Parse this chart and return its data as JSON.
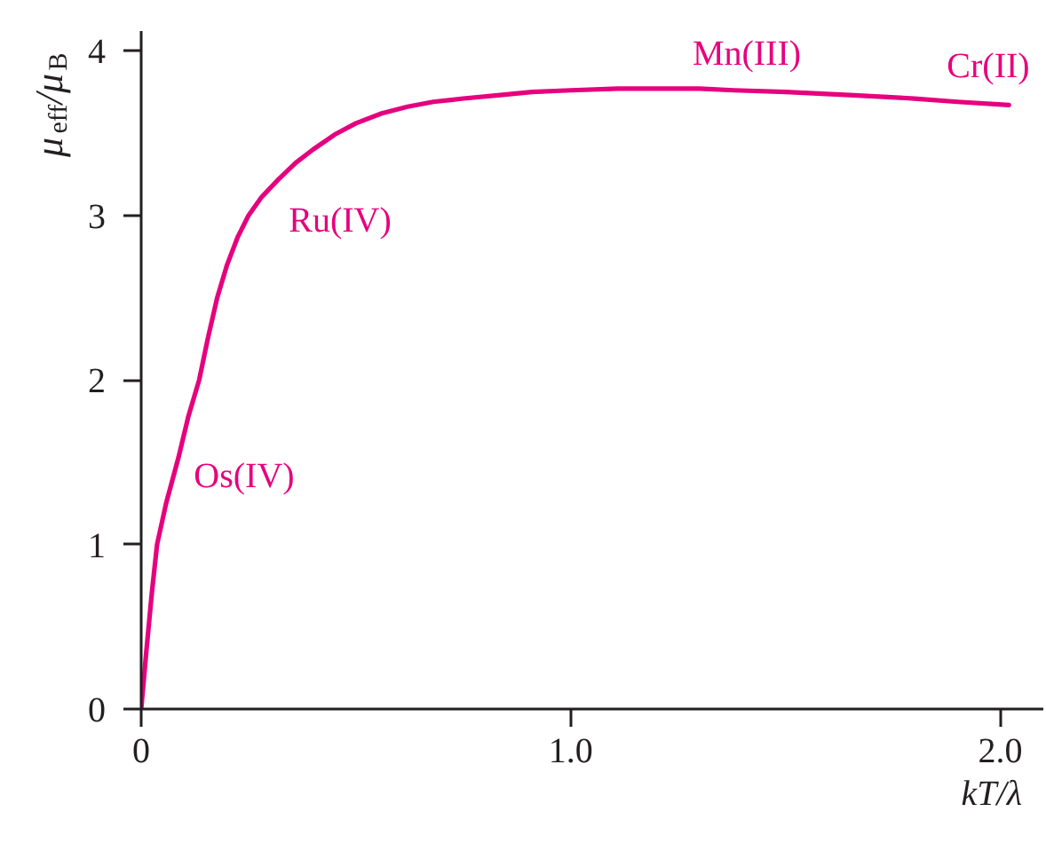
{
  "chart_data": {
    "type": "line",
    "xlabel": "kT/λ",
    "ylabel": "μ$_{eff}$/μ$_{B}$",
    "x": [
      0,
      0.012,
      0.025,
      0.037,
      0.058,
      0.087,
      0.11,
      0.135,
      0.155,
      0.177,
      0.2,
      0.225,
      0.25,
      0.28,
      0.32,
      0.36,
      0.4,
      0.45,
      0.5,
      0.56,
      0.62,
      0.68,
      0.75,
      0.83,
      0.91,
      1.0,
      1.11,
      1.2,
      1.3,
      1.38,
      1.5,
      1.66,
      1.8,
      1.9,
      2.02
    ],
    "series": [
      {
        "color": "#e6007e",
        "values": [
          0,
          0.35,
          0.71,
          1.0,
          1.25,
          1.53,
          1.78,
          2.0,
          2.25,
          2.5,
          2.7,
          2.87,
          3.0,
          3.11,
          3.22,
          3.32,
          3.4,
          3.49,
          3.56,
          3.62,
          3.66,
          3.69,
          3.71,
          3.73,
          3.75,
          3.76,
          3.77,
          3.77,
          3.77,
          3.76,
          3.75,
          3.73,
          3.71,
          3.69,
          3.67
        ]
      }
    ],
    "xlim": [
      0,
      2.1
    ],
    "ylim": [
      0,
      4.12
    ],
    "xticks": [
      0,
      {
        "value": 1,
        "label": "1.0"
      },
      {
        "value": 2,
        "label": "2.0"
      }
    ],
    "yticks": [
      0,
      1,
      2,
      3,
      4
    ],
    "grid": false,
    "marker": "none",
    "line_style": "solid",
    "annotations": [
      "Os(IV)",
      "Ru(IV)",
      "Mn(III)",
      "Cr(II)"
    ]
  }
}
